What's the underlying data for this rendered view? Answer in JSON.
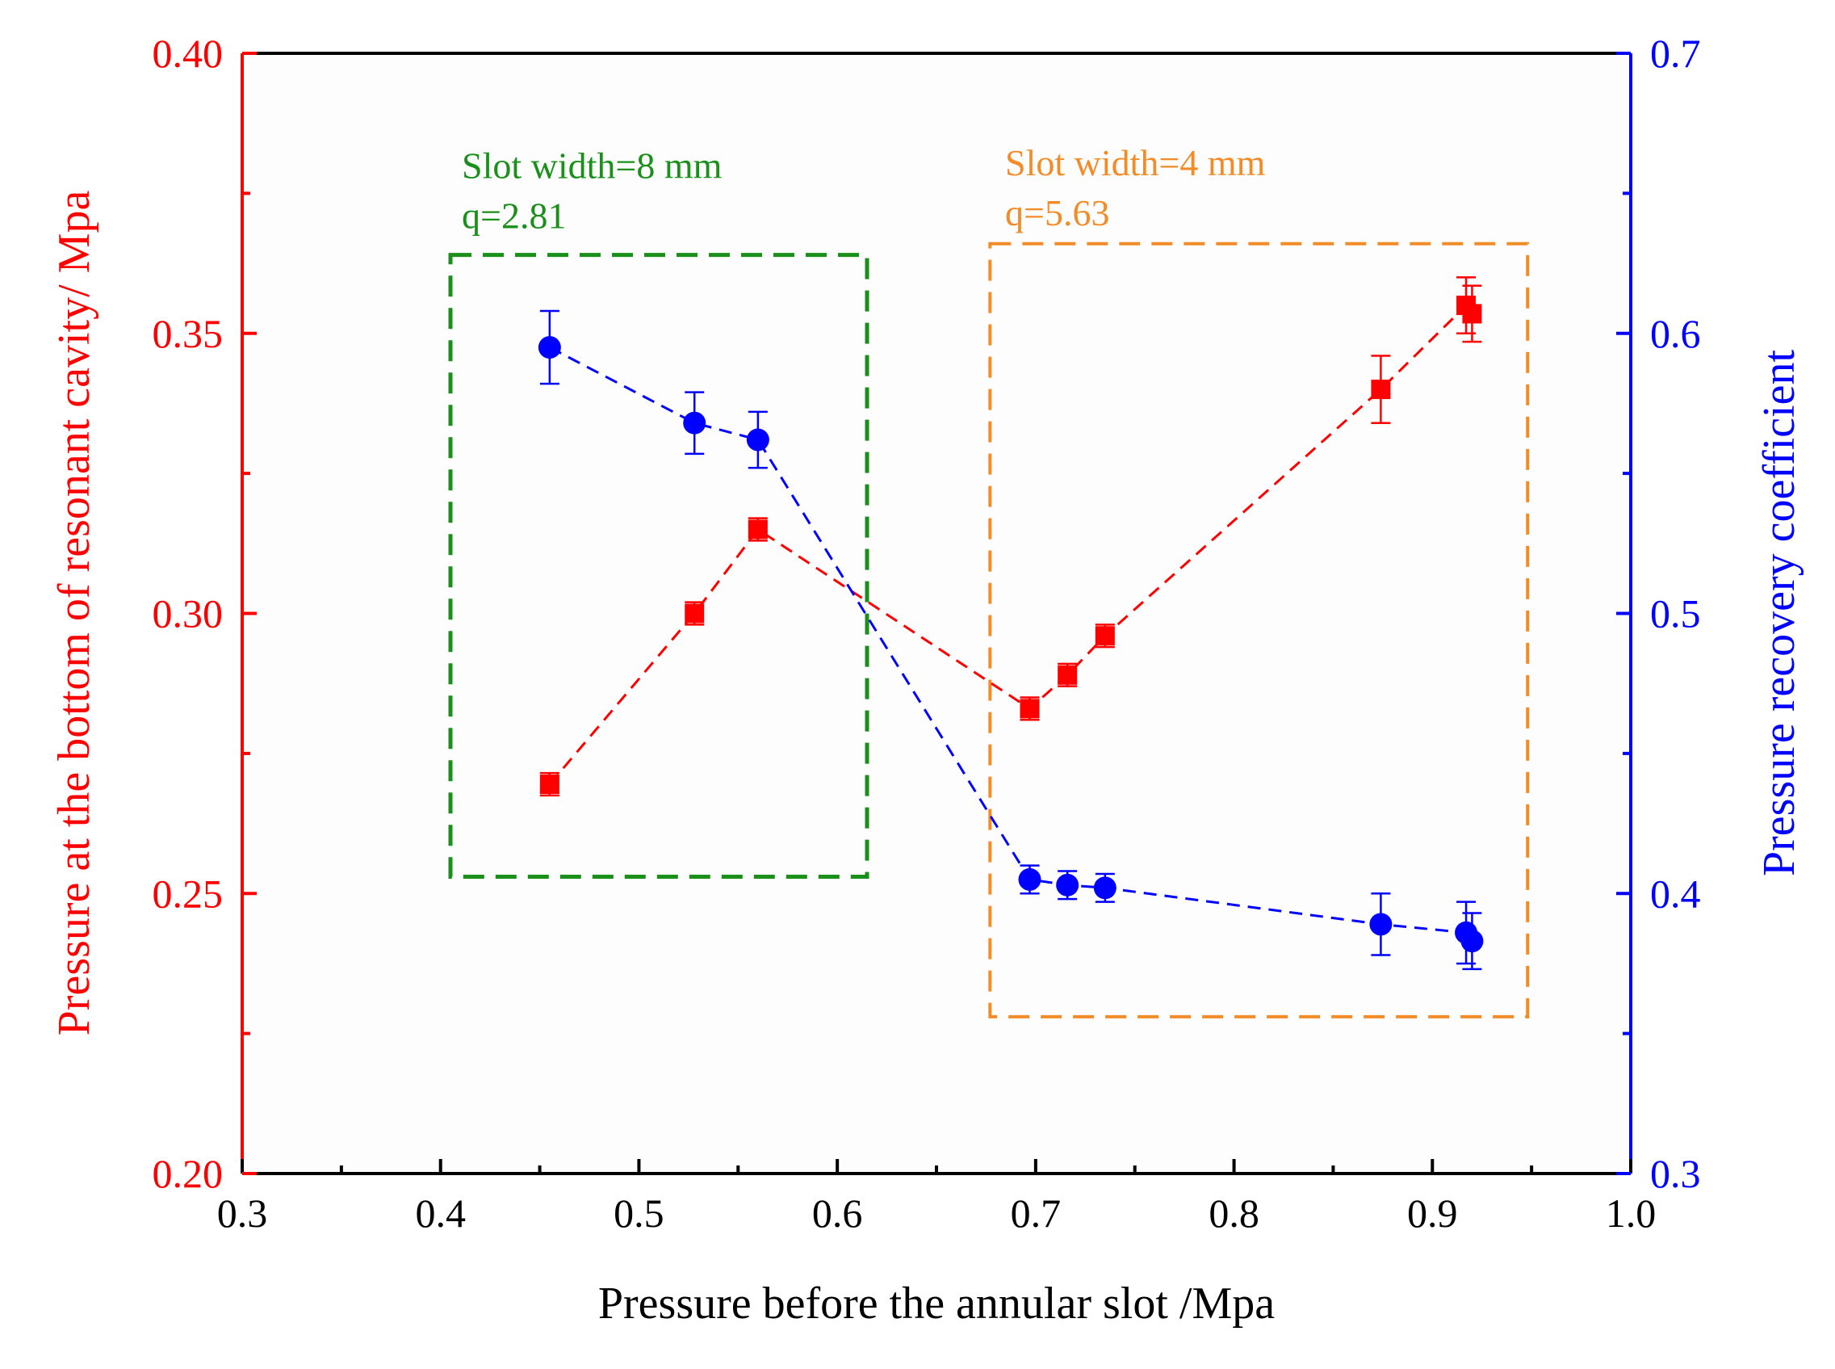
{
  "chart_data": {
    "type": "scatter",
    "xlabel": "Pressure before the annular slot /Mpa",
    "xlim": [
      0.3,
      1.0
    ],
    "x_ticks": [
      "0.3",
      "0.4",
      "0.5",
      "0.6",
      "0.7",
      "0.8",
      "0.9",
      "1.0"
    ],
    "y_left": {
      "label": "Pressure at the bottom of resonant cavity/ Mpa",
      "lim": [
        0.2,
        0.4
      ],
      "ticks": [
        "0.20",
        "0.25",
        "0.30",
        "0.35",
        "0.40"
      ],
      "color": "#ff0000"
    },
    "y_right": {
      "label": "Pressure recovery coefficient",
      "lim": [
        0.3,
        0.7
      ],
      "ticks": [
        "0.3",
        "0.4",
        "0.5",
        "0.6",
        "0.7"
      ],
      "color": "#0000ff"
    },
    "series": [
      {
        "name": "Pressure at the bottom of resonant cavity",
        "axis": "left",
        "marker": "square",
        "color": "#ff0000",
        "x": [
          0.455,
          0.528,
          0.56,
          0.697,
          0.716,
          0.735,
          0.874,
          0.917,
          0.92
        ],
        "y": [
          0.2695,
          0.3,
          0.315,
          0.283,
          0.289,
          0.296,
          0.34,
          0.355,
          0.3535
        ],
        "err": [
          0.002,
          0.002,
          0.002,
          0.002,
          0.002,
          0.002,
          0.006,
          0.005,
          0.005
        ]
      },
      {
        "name": "Pressure recovery coefficient",
        "axis": "right",
        "marker": "circle",
        "color": "#0000ff",
        "x": [
          0.455,
          0.528,
          0.56,
          0.697,
          0.716,
          0.735,
          0.874,
          0.917,
          0.92
        ],
        "y": [
          0.595,
          0.568,
          0.562,
          0.405,
          0.403,
          0.402,
          0.389,
          0.386,
          0.383
        ],
        "err": [
          0.013,
          0.011,
          0.01,
          0.005,
          0.005,
          0.005,
          0.011,
          0.011,
          0.01
        ]
      }
    ],
    "annotations": [
      {
        "lines": [
          "Slot width=8 mm",
          "q=2.81"
        ],
        "color": "#1a8f1a",
        "box": {
          "x": [
            0.405,
            0.615
          ],
          "y_left": [
            0.253,
            0.364
          ]
        }
      },
      {
        "lines": [
          "Slot width=4 mm",
          "q=5.63"
        ],
        "color": "#f28c28",
        "box": {
          "x": [
            0.677,
            0.948
          ],
          "y_left": [
            0.228,
            0.366
          ]
        }
      }
    ]
  }
}
